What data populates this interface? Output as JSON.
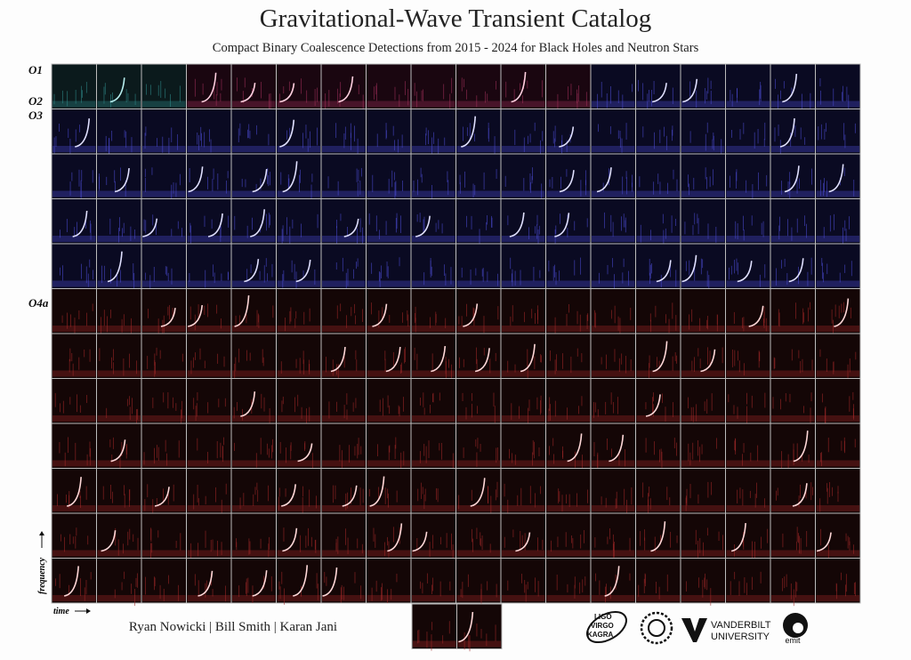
{
  "header": {
    "title": "Gravitational-Wave Transient Catalog",
    "subtitle": "Compact Binary Coalescence Detections from 2015 - 2024 for Black Holes and Neutron Stars"
  },
  "runs": [
    "O1",
    "O2",
    "O3",
    "O4a"
  ],
  "axes": {
    "frequency": "frequency",
    "time": "time"
  },
  "footer": {
    "authors": "Ryan Nowicki | Bill Smith | Karan Jani",
    "logos": {
      "lvk": [
        "LIGO",
        "VIRGO",
        "KAGRA"
      ],
      "vanderbilt": [
        "VANDERBILT",
        "UNIVERSITY"
      ],
      "emit": "emit"
    }
  }
}
